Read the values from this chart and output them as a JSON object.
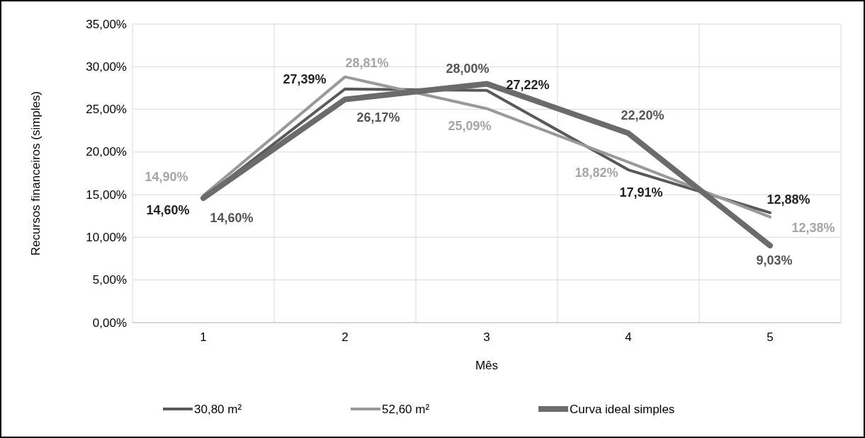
{
  "chart_data": {
    "type": "line",
    "xlabel": "Mês",
    "ylabel": "Recursos financeiros (simples)",
    "categories": [
      "1",
      "2",
      "3",
      "4",
      "5"
    ],
    "series": [
      {
        "name": "30,80 m²",
        "color": "#595959",
        "values": [
          14.6,
          27.39,
          27.22,
          17.91,
          12.88
        ],
        "value_labels": [
          "14,60%",
          "27,39%",
          "27,22%",
          "17,91%",
          "12,88%"
        ]
      },
      {
        "name": "52,60 m²",
        "color": "#999999",
        "values": [
          14.9,
          28.81,
          25.09,
          18.82,
          12.38
        ],
        "value_labels": [
          "14,90%",
          "28,81%",
          "25,09%",
          "18,82%",
          "12,38%"
        ]
      },
      {
        "name": "Curva ideal simples",
        "color": "#6b6b6b",
        "values": [
          14.6,
          26.17,
          28.0,
          22.2,
          9.03
        ],
        "value_labels": [
          "14,60%",
          "26,17%",
          "28,00%",
          "22,20%",
          "9,03%"
        ]
      }
    ],
    "ylim": [
      0,
      35
    ],
    "yticks": [
      {
        "value": 0,
        "label": "0,00%"
      },
      {
        "value": 5,
        "label": "5,00%"
      },
      {
        "value": 10,
        "label": "10,00%"
      },
      {
        "value": 15,
        "label": "15,00%"
      },
      {
        "value": 20,
        "label": "20,00%"
      },
      {
        "value": 25,
        "label": "25,00%"
      },
      {
        "value": 30,
        "label": "30,00%"
      },
      {
        "value": 35,
        "label": "35,00%"
      }
    ],
    "grid": true,
    "legend": "bottom",
    "marker": "none",
    "line_style": "solid"
  }
}
